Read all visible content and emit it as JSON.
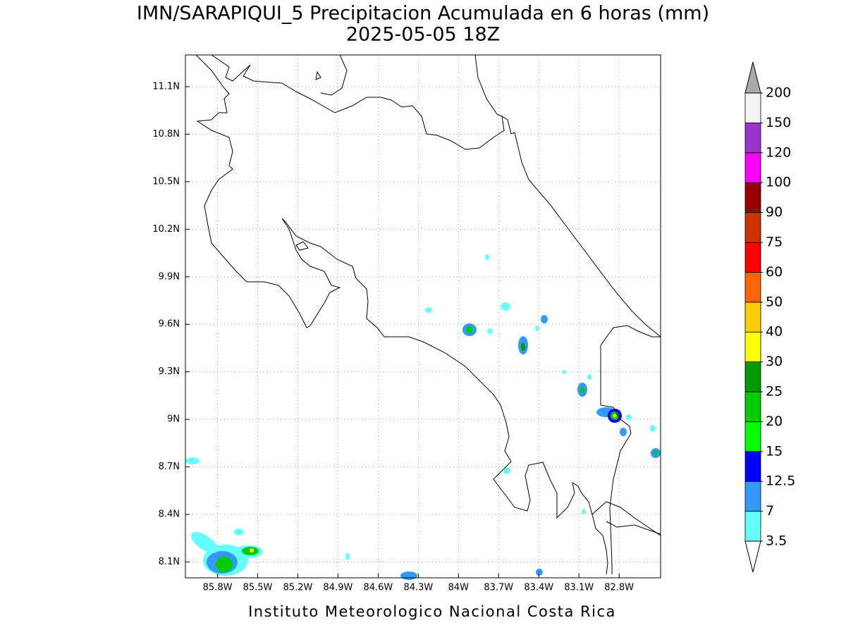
{
  "map": {
    "title": "IMN/SARAPIQUI_5 Precipitacion Acumulada en 6 horas (mm)",
    "subtitle": "2025-05-05 18Z",
    "footer": "Instituto Meteorologico Nacional Costa Rica",
    "xlim": [
      -86.04,
      -82.49
    ],
    "ylim": [
      8.0,
      11.3
    ],
    "grid": true,
    "xticks": [
      {
        "value": -85.8,
        "label": "85.8W"
      },
      {
        "value": -85.5,
        "label": "85.5W"
      },
      {
        "value": -85.2,
        "label": "85.2W"
      },
      {
        "value": -84.9,
        "label": "84.9W"
      },
      {
        "value": -84.6,
        "label": "84.6W"
      },
      {
        "value": -84.3,
        "label": "84.3W"
      },
      {
        "value": -84.0,
        "label": "84W"
      },
      {
        "value": -83.7,
        "label": "83.7W"
      },
      {
        "value": -83.4,
        "label": "83.4W"
      },
      {
        "value": -83.1,
        "label": "83.1W"
      },
      {
        "value": -82.8,
        "label": "82.8W"
      }
    ],
    "yticks": [
      {
        "value": 8.1,
        "label": "8.1N"
      },
      {
        "value": 8.4,
        "label": "8.4N"
      },
      {
        "value": 8.7,
        "label": "8.7N"
      },
      {
        "value": 9.0,
        "label": "9N"
      },
      {
        "value": 9.3,
        "label": "9.3N"
      },
      {
        "value": 9.6,
        "label": "9.6N"
      },
      {
        "value": 9.9,
        "label": "9.9N"
      },
      {
        "value": 10.2,
        "label": "10.2N"
      },
      {
        "value": 10.5,
        "label": "10.5N"
      },
      {
        "value": 10.8,
        "label": "10.8N"
      },
      {
        "value": 11.1,
        "label": "11.1N"
      }
    ],
    "colorbar": {
      "levels": [
        3.5,
        7,
        12.5,
        15,
        20,
        25,
        30,
        40,
        50,
        60,
        75,
        90,
        100,
        120,
        150,
        200
      ],
      "colors": [
        "#66ffff",
        "#3399ff",
        "#0000ff",
        "#00ff00",
        "#00cc00",
        "#009900",
        "#ffff00",
        "#ffcc00",
        "#ff6600",
        "#ff0000",
        "#cc3300",
        "#990000",
        "#ff00ff",
        "#9933cc",
        "#f4f4f4"
      ],
      "over_color": "#aaaaaa",
      "under_color": "#ffffff"
    }
  }
}
